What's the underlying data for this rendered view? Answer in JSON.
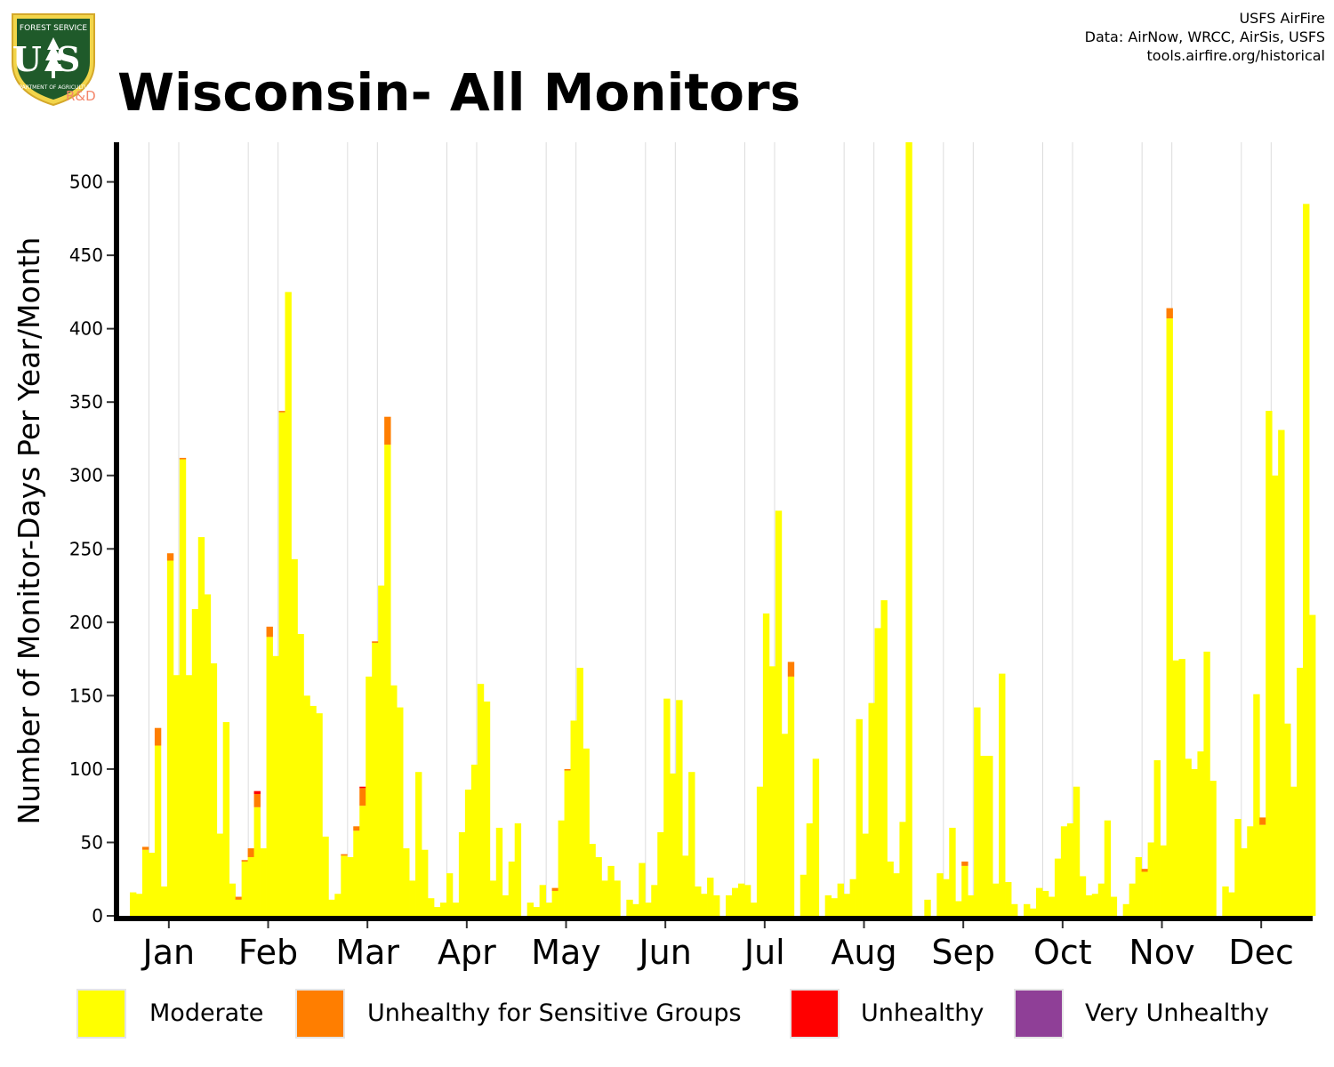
{
  "header": {
    "title": "Wisconsin- All Monitors",
    "credits": [
      "USFS AirFire",
      "Data: AirNow, WRCC, AirSis, USFS",
      "tools.airfire.org/historical"
    ]
  },
  "logo": {
    "text_top": "FOREST SERVICE",
    "text_main": "US",
    "text_bottom": "DEPARTMENT OF AGRICULTURE",
    "badge": "R&D"
  },
  "colors": {
    "moderate": "#FFFF00",
    "usg": "#FF7E00",
    "unhealthy": "#FF0000",
    "very_unhealthy": "#8F3F97"
  },
  "chart_data": {
    "type": "bar",
    "stacked": true,
    "ylabel": "Number of Monitor-Days Per Year/Month",
    "ylim": [
      0,
      527
    ],
    "yticks": [
      "0",
      "50",
      "100",
      "150",
      "200",
      "250",
      "300",
      "350",
      "400",
      "450",
      "500"
    ],
    "categories": [
      "Jan",
      "Feb",
      "Mar",
      "Apr",
      "May",
      "Jun",
      "Jul",
      "Aug",
      "Sep",
      "Oct",
      "Nov",
      "Dec"
    ],
    "legend": {
      "position": "bottom",
      "entries": [
        "Moderate",
        "Unhealthy for Sensitive Groups",
        "Unhealthy",
        "Very Unhealthy"
      ]
    },
    "years_per_month": 16,
    "series": [
      {
        "name": "Moderate",
        "values": [
          [
            16,
            15,
            45,
            43,
            116,
            20,
            242,
            164,
            311,
            164,
            209,
            258,
            219,
            172,
            56,
            132
          ],
          [
            22,
            11,
            37,
            40,
            74,
            46,
            190,
            177,
            343,
            425,
            243,
            192,
            150,
            143,
            138,
            54
          ],
          [
            11,
            15,
            41,
            40,
            58,
            75,
            163,
            186,
            225,
            321,
            157,
            142,
            46,
            24,
            98,
            45
          ],
          [
            12,
            6,
            9,
            29,
            9,
            57,
            86,
            103,
            158,
            146,
            24,
            60,
            14,
            37,
            63,
            0
          ],
          [
            9,
            6,
            21,
            9,
            17,
            65,
            99,
            133,
            169,
            114,
            49,
            40,
            24,
            34,
            24,
            0
          ],
          [
            11,
            8,
            36,
            9,
            21,
            57,
            148,
            97,
            147,
            41,
            98,
            20,
            15,
            26,
            14,
            0
          ],
          [
            14,
            19,
            22,
            21,
            9,
            88,
            206,
            170,
            276,
            124,
            163,
            0,
            28,
            63,
            107,
            0
          ],
          [
            14,
            12,
            22,
            15,
            25,
            134,
            56,
            145,
            196,
            215,
            37,
            29,
            64,
            527,
            0,
            0
          ],
          [
            11,
            0,
            29,
            25,
            60,
            10,
            34,
            14,
            142,
            109,
            109,
            22,
            165,
            23,
            8,
            0
          ],
          [
            8,
            5,
            19,
            17,
            13,
            39,
            61,
            63,
            88,
            27,
            14,
            15,
            22,
            65,
            13,
            0
          ],
          [
            8,
            22,
            40,
            30,
            50,
            106,
            48,
            407,
            174,
            175,
            107,
            100,
            112,
            180,
            92,
            0
          ],
          [
            20,
            16,
            66,
            46,
            61,
            151,
            62,
            344,
            300,
            331,
            131,
            88,
            169,
            485,
            205,
            0
          ]
        ]
      },
      {
        "name": "Unhealthy for Sensitive Groups",
        "values": [
          [
            0,
            0,
            2,
            0,
            12,
            0,
            5,
            0,
            1,
            0,
            0,
            0,
            0,
            0,
            0,
            0
          ],
          [
            0,
            2,
            1,
            6,
            9,
            0,
            7,
            0,
            1,
            0,
            0,
            0,
            0,
            0,
            0,
            0
          ],
          [
            0,
            0,
            1,
            0,
            3,
            12,
            0,
            1,
            0,
            19,
            0,
            0,
            0,
            0,
            0,
            0
          ],
          [
            0,
            0,
            0,
            0,
            0,
            0,
            0,
            0,
            0,
            0,
            0,
            0,
            0,
            0,
            0,
            0
          ],
          [
            0,
            0,
            0,
            0,
            2,
            0,
            1,
            0,
            0,
            0,
            0,
            0,
            0,
            0,
            0,
            0
          ],
          [
            0,
            0,
            0,
            0,
            0,
            0,
            0,
            0,
            0,
            0,
            0,
            0,
            0,
            0,
            0,
            0
          ],
          [
            0,
            0,
            0,
            0,
            0,
            0,
            0,
            0,
            0,
            0,
            10,
            0,
            0,
            0,
            0,
            0
          ],
          [
            0,
            0,
            0,
            0,
            0,
            0,
            0,
            0,
            0,
            0,
            0,
            0,
            0,
            0,
            0,
            0
          ],
          [
            0,
            0,
            0,
            0,
            0,
            0,
            3,
            0,
            0,
            0,
            0,
            0,
            0,
            0,
            0,
            0
          ],
          [
            0,
            0,
            0,
            0,
            0,
            0,
            0,
            0,
            0,
            0,
            0,
            0,
            0,
            0,
            0,
            0
          ],
          [
            0,
            0,
            0,
            2,
            0,
            0,
            0,
            7,
            0,
            0,
            0,
            0,
            0,
            0,
            0,
            0
          ],
          [
            0,
            0,
            0,
            0,
            0,
            0,
            5,
            0,
            0,
            0,
            0,
            0,
            0,
            0,
            0,
            0
          ]
        ]
      },
      {
        "name": "Unhealthy",
        "values": [
          [
            0,
            0,
            0,
            0,
            0,
            0,
            0,
            0,
            0,
            0,
            0,
            0,
            0,
            0,
            0,
            0
          ],
          [
            0,
            0,
            0,
            0,
            2,
            0,
            0,
            0,
            0,
            0,
            0,
            0,
            0,
            0,
            0,
            0
          ],
          [
            0,
            0,
            0,
            0,
            0,
            1,
            0,
            0,
            0,
            0,
            0,
            0,
            0,
            0,
            0,
            0
          ],
          [
            0,
            0,
            0,
            0,
            0,
            0,
            0,
            0,
            0,
            0,
            0,
            0,
            0,
            0,
            0,
            0
          ],
          [
            0,
            0,
            0,
            0,
            0,
            0,
            0,
            0,
            0,
            0,
            0,
            0,
            0,
            0,
            0,
            0
          ],
          [
            0,
            0,
            0,
            0,
            0,
            0,
            0,
            0,
            0,
            0,
            0,
            0,
            0,
            0,
            0,
            0
          ],
          [
            0,
            0,
            0,
            0,
            0,
            0,
            0,
            0,
            0,
            0,
            0,
            0,
            0,
            0,
            0,
            0
          ],
          [
            0,
            0,
            0,
            0,
            0,
            0,
            0,
            0,
            0,
            0,
            0,
            0,
            0,
            0,
            0,
            0
          ],
          [
            0,
            0,
            0,
            0,
            0,
            0,
            0,
            0,
            0,
            0,
            0,
            0,
            0,
            0,
            0,
            0
          ],
          [
            0,
            0,
            0,
            0,
            0,
            0,
            0,
            0,
            0,
            0,
            0,
            0,
            0,
            0,
            0,
            0
          ],
          [
            0,
            0,
            0,
            0,
            0,
            0,
            0,
            0,
            0,
            0,
            0,
            0,
            0,
            0,
            0,
            0
          ],
          [
            0,
            0,
            0,
            0,
            0,
            0,
            0,
            0,
            0,
            0,
            0,
            0,
            0,
            0,
            0,
            0
          ]
        ]
      },
      {
        "name": "Very Unhealthy",
        "values": [
          [
            0,
            0,
            0,
            0,
            0,
            0,
            0,
            0,
            0,
            0,
            0,
            0,
            0,
            0,
            0,
            0
          ],
          [
            0,
            0,
            0,
            0,
            0,
            0,
            0,
            0,
            0,
            0,
            0,
            0,
            0,
            0,
            0,
            0
          ],
          [
            0,
            0,
            0,
            0,
            0,
            0,
            0,
            0,
            0,
            0,
            0,
            0,
            0,
            0,
            0,
            0
          ],
          [
            0,
            0,
            0,
            0,
            0,
            0,
            0,
            0,
            0,
            0,
            0,
            0,
            0,
            0,
            0,
            0
          ],
          [
            0,
            0,
            0,
            0,
            0,
            0,
            0,
            0,
            0,
            0,
            0,
            0,
            0,
            0,
            0,
            0
          ],
          [
            0,
            0,
            0,
            0,
            0,
            0,
            0,
            0,
            0,
            0,
            0,
            0,
            0,
            0,
            0,
            0
          ],
          [
            0,
            0,
            0,
            0,
            0,
            0,
            0,
            0,
            0,
            0,
            0,
            0,
            0,
            0,
            0,
            0
          ],
          [
            0,
            0,
            0,
            0,
            0,
            0,
            0,
            0,
            0,
            0,
            0,
            0,
            0,
            0,
            0,
            0
          ],
          [
            0,
            0,
            0,
            0,
            0,
            0,
            0,
            0,
            0,
            0,
            0,
            0,
            0,
            0,
            0,
            0
          ],
          [
            0,
            0,
            0,
            0,
            0,
            0,
            0,
            0,
            0,
            0,
            0,
            0,
            0,
            0,
            0,
            0
          ],
          [
            0,
            0,
            0,
            0,
            0,
            0,
            0,
            0,
            0,
            0,
            0,
            0,
            0,
            0,
            0,
            0
          ],
          [
            0,
            0,
            0,
            0,
            0,
            0,
            0,
            0,
            0,
            0,
            0,
            0,
            0,
            0,
            0,
            0
          ]
        ]
      }
    ]
  }
}
